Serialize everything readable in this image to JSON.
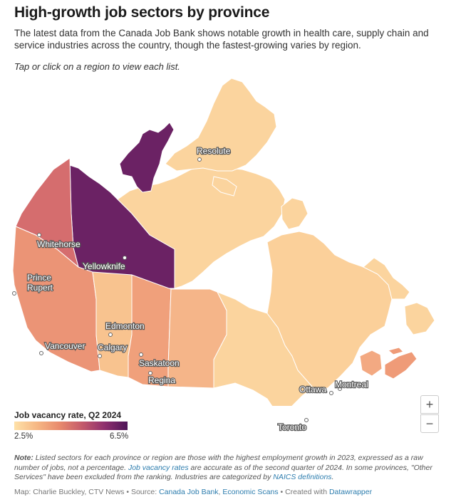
{
  "header": {
    "title": "High-growth job sectors by province",
    "subtitle": "The latest data from the Canada Job Bank shows notable growth in health care, supply chain and service industries across the country, though the fastest-growing varies by region.",
    "instruction": "Tap or click on a region to view each list."
  },
  "map": {
    "regions": [
      {
        "name": "Nunavut",
        "color": "#fbd49e"
      },
      {
        "name": "Nunavut Arctic Islands",
        "color": "#fbd49e"
      },
      {
        "name": "Northwest Territories Arctic",
        "color": "#6b2264"
      },
      {
        "name": "Northwest Territories",
        "color": "#6b2264"
      },
      {
        "name": "Yukon",
        "color": "#d56d6e"
      },
      {
        "name": "British Columbia",
        "color": "#eb9476"
      },
      {
        "name": "Alberta",
        "color": "#f8c38f"
      },
      {
        "name": "Saskatchewan",
        "color": "#f0a07b"
      },
      {
        "name": "Manitoba",
        "color": "#f5b589"
      },
      {
        "name": "Ontario",
        "color": "#fbd49e"
      },
      {
        "name": "Quebec",
        "color": "#fbd09a"
      },
      {
        "name": "Newfoundland and Labrador",
        "color": "#fbd49e"
      },
      {
        "name": "New Brunswick",
        "color": "#f3a982"
      },
      {
        "name": "Nova Scotia",
        "color": "#ef9b78"
      },
      {
        "name": "Prince Edward Island",
        "color": "#ef9b78"
      }
    ],
    "cities": {
      "resolute": "Resolute",
      "whitehorse": "Whitehorse",
      "yellowknife": "Yellowknife",
      "prince": "Prince",
      "rupert": "Rupert",
      "edmonton": "Edmonton",
      "vancouver": "Vancouver",
      "calgary": "Calgary",
      "saskatoon": "Saskatoon",
      "regina": "Regina",
      "ottawa": "Ottawa",
      "montreal": "Montreal",
      "toronto": "Toronto"
    },
    "zoom_in": "+",
    "zoom_out": "−"
  },
  "legend": {
    "title": "Job vacancy rate, Q2 2024",
    "min": "2.5%",
    "max": "6.5%",
    "low_color": "#fee1a8",
    "high_color": "#4e1558"
  },
  "note": {
    "label": "Note:",
    "text1": " Listed sectors for each province or region are those with the highest employment growth in 2023, expressed as a raw number of jobs, not a percentage. ",
    "link1": "Job vacancy rates",
    "text2": " are accurate as of the second quarter of 2024. In some provinces, \"Other Services\" have been excluded from the ranking. Industries are categorized by ",
    "link2": "NAICS definitions",
    "text3": "."
  },
  "source": {
    "prefix": "Map: Charlie Buckley, CTV News • Source: ",
    "link1": "Canada Job Bank",
    "sep": ", ",
    "link2": "Economic Scans",
    "middle": " • Created with ",
    "link3": "Datawrapper"
  }
}
